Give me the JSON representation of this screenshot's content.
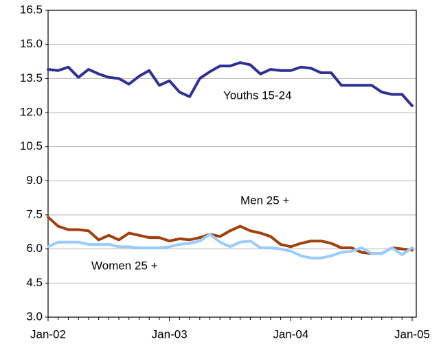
{
  "chart_data": {
    "type": "line",
    "categories": [
      "Jan-02",
      null,
      null,
      null,
      null,
      null,
      null,
      null,
      null,
      null,
      null,
      null,
      "Jan-03",
      null,
      null,
      null,
      null,
      null,
      null,
      null,
      null,
      null,
      null,
      null,
      "Jan-04",
      null,
      null,
      null,
      null,
      null,
      null,
      null,
      null,
      null,
      null,
      null,
      "Jan-05"
    ],
    "series": [
      {
        "name": "Youths 15-24",
        "color": "#2e3192",
        "values": [
          13.9,
          13.85,
          14.0,
          13.55,
          13.9,
          13.7,
          13.55,
          13.5,
          13.25,
          13.6,
          13.85,
          13.2,
          13.4,
          12.9,
          12.7,
          13.5,
          13.8,
          14.05,
          14.05,
          14.2,
          14.1,
          13.7,
          13.9,
          13.85,
          13.85,
          14.0,
          13.95,
          13.75,
          13.75,
          13.2,
          13.2,
          13.2,
          13.2,
          12.9,
          12.8,
          12.8,
          12.3
        ]
      },
      {
        "name": "Men 25 +",
        "color": "#a0410d",
        "values": [
          7.4,
          7.0,
          6.85,
          6.85,
          6.8,
          6.4,
          6.6,
          6.4,
          6.7,
          6.6,
          6.5,
          6.5,
          6.35,
          6.45,
          6.4,
          6.5,
          6.65,
          6.55,
          6.8,
          7.0,
          6.8,
          6.7,
          6.55,
          6.2,
          6.1,
          6.25,
          6.35,
          6.35,
          6.25,
          6.05,
          6.05,
          5.85,
          5.8,
          5.8,
          6.05,
          6.0,
          5.95
        ]
      },
      {
        "name": "Women 25 +",
        "color": "#99ccff",
        "values": [
          6.1,
          6.3,
          6.3,
          6.3,
          6.2,
          6.2,
          6.2,
          6.1,
          6.1,
          6.05,
          6.05,
          6.05,
          6.1,
          6.2,
          6.25,
          6.35,
          6.65,
          6.3,
          6.1,
          6.3,
          6.35,
          6.05,
          6.05,
          6.0,
          5.9,
          5.7,
          5.6,
          5.6,
          5.7,
          5.85,
          5.9,
          6.05,
          5.8,
          5.8,
          6.05,
          5.75,
          6.05
        ]
      }
    ],
    "ylim": [
      3.0,
      16.5
    ],
    "yticks": [
      {
        "value": 3,
        "label": "3.0"
      },
      4.5,
      {
        "value": 6,
        "label": "6.0"
      },
      7.5,
      {
        "value": 9,
        "label": "9.0"
      },
      10.5,
      {
        "value": 12,
        "label": "12.0"
      },
      13.5,
      {
        "value": 15,
        "label": "15.0"
      },
      16.5
    ],
    "grid": true
  }
}
